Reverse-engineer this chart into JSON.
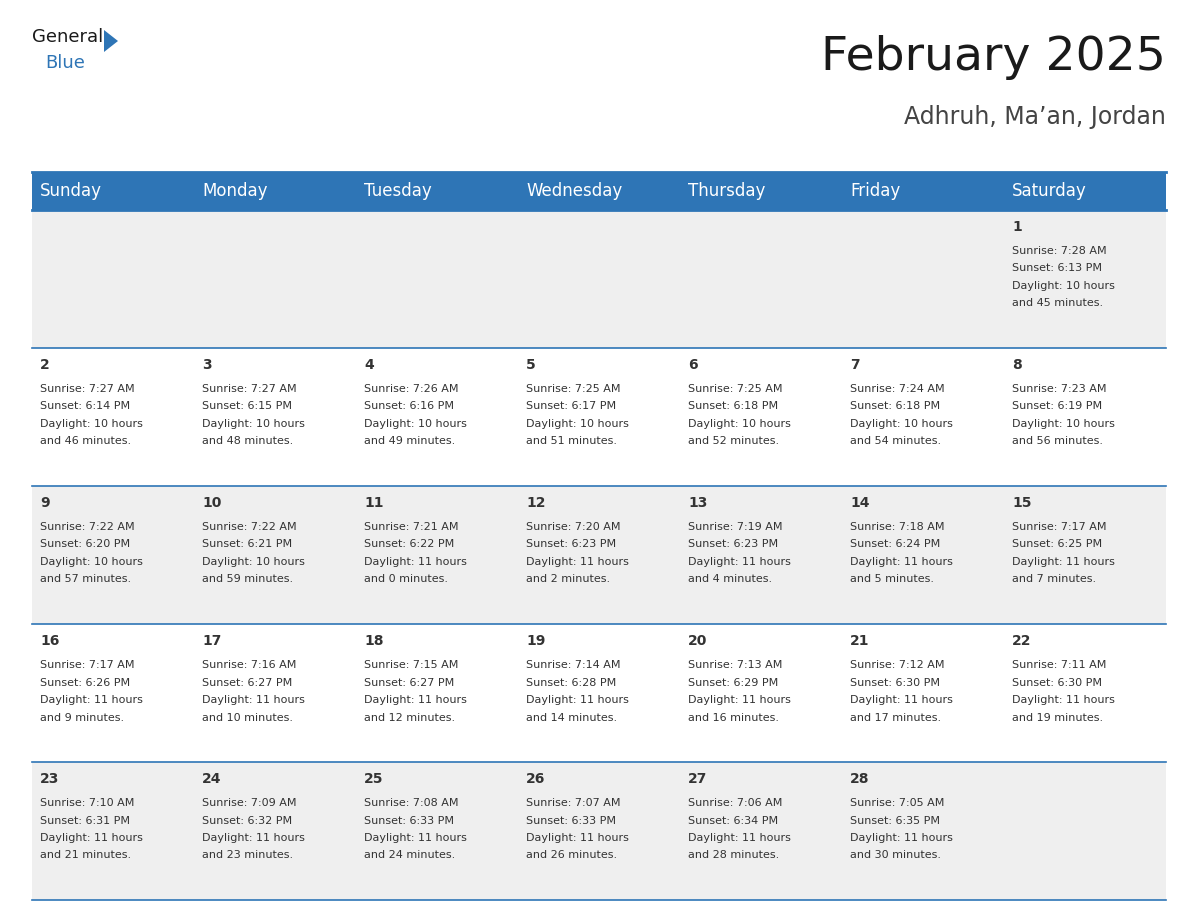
{
  "title": "February 2025",
  "subtitle": "Adhruh, Ma’an, Jordan",
  "header_bg": "#2E75B6",
  "header_text_color": "#FFFFFF",
  "cell_bg_odd": "#EFEFEF",
  "cell_bg_even": "#FFFFFF",
  "border_color": "#2E75B6",
  "text_color": "#333333",
  "day_headers": [
    "Sunday",
    "Monday",
    "Tuesday",
    "Wednesday",
    "Thursday",
    "Friday",
    "Saturday"
  ],
  "days": [
    {
      "day": 1,
      "col": 6,
      "row": 0,
      "sunrise": "7:28 AM",
      "sunset": "6:13 PM",
      "daylight": "10 hours and 45 minutes."
    },
    {
      "day": 2,
      "col": 0,
      "row": 1,
      "sunrise": "7:27 AM",
      "sunset": "6:14 PM",
      "daylight": "10 hours and 46 minutes."
    },
    {
      "day": 3,
      "col": 1,
      "row": 1,
      "sunrise": "7:27 AM",
      "sunset": "6:15 PM",
      "daylight": "10 hours and 48 minutes."
    },
    {
      "day": 4,
      "col": 2,
      "row": 1,
      "sunrise": "7:26 AM",
      "sunset": "6:16 PM",
      "daylight": "10 hours and 49 minutes."
    },
    {
      "day": 5,
      "col": 3,
      "row": 1,
      "sunrise": "7:25 AM",
      "sunset": "6:17 PM",
      "daylight": "10 hours and 51 minutes."
    },
    {
      "day": 6,
      "col": 4,
      "row": 1,
      "sunrise": "7:25 AM",
      "sunset": "6:18 PM",
      "daylight": "10 hours and 52 minutes."
    },
    {
      "day": 7,
      "col": 5,
      "row": 1,
      "sunrise": "7:24 AM",
      "sunset": "6:18 PM",
      "daylight": "10 hours and 54 minutes."
    },
    {
      "day": 8,
      "col": 6,
      "row": 1,
      "sunrise": "7:23 AM",
      "sunset": "6:19 PM",
      "daylight": "10 hours and 56 minutes."
    },
    {
      "day": 9,
      "col": 0,
      "row": 2,
      "sunrise": "7:22 AM",
      "sunset": "6:20 PM",
      "daylight": "10 hours and 57 minutes."
    },
    {
      "day": 10,
      "col": 1,
      "row": 2,
      "sunrise": "7:22 AM",
      "sunset": "6:21 PM",
      "daylight": "10 hours and 59 minutes."
    },
    {
      "day": 11,
      "col": 2,
      "row": 2,
      "sunrise": "7:21 AM",
      "sunset": "6:22 PM",
      "daylight": "11 hours and 0 minutes."
    },
    {
      "day": 12,
      "col": 3,
      "row": 2,
      "sunrise": "7:20 AM",
      "sunset": "6:23 PM",
      "daylight": "11 hours and 2 minutes."
    },
    {
      "day": 13,
      "col": 4,
      "row": 2,
      "sunrise": "7:19 AM",
      "sunset": "6:23 PM",
      "daylight": "11 hours and 4 minutes."
    },
    {
      "day": 14,
      "col": 5,
      "row": 2,
      "sunrise": "7:18 AM",
      "sunset": "6:24 PM",
      "daylight": "11 hours and 5 minutes."
    },
    {
      "day": 15,
      "col": 6,
      "row": 2,
      "sunrise": "7:17 AM",
      "sunset": "6:25 PM",
      "daylight": "11 hours and 7 minutes."
    },
    {
      "day": 16,
      "col": 0,
      "row": 3,
      "sunrise": "7:17 AM",
      "sunset": "6:26 PM",
      "daylight": "11 hours and 9 minutes."
    },
    {
      "day": 17,
      "col": 1,
      "row": 3,
      "sunrise": "7:16 AM",
      "sunset": "6:27 PM",
      "daylight": "11 hours and 10 minutes."
    },
    {
      "day": 18,
      "col": 2,
      "row": 3,
      "sunrise": "7:15 AM",
      "sunset": "6:27 PM",
      "daylight": "11 hours and 12 minutes."
    },
    {
      "day": 19,
      "col": 3,
      "row": 3,
      "sunrise": "7:14 AM",
      "sunset": "6:28 PM",
      "daylight": "11 hours and 14 minutes."
    },
    {
      "day": 20,
      "col": 4,
      "row": 3,
      "sunrise": "7:13 AM",
      "sunset": "6:29 PM",
      "daylight": "11 hours and 16 minutes."
    },
    {
      "day": 21,
      "col": 5,
      "row": 3,
      "sunrise": "7:12 AM",
      "sunset": "6:30 PM",
      "daylight": "11 hours and 17 minutes."
    },
    {
      "day": 22,
      "col": 6,
      "row": 3,
      "sunrise": "7:11 AM",
      "sunset": "6:30 PM",
      "daylight": "11 hours and 19 minutes."
    },
    {
      "day": 23,
      "col": 0,
      "row": 4,
      "sunrise": "7:10 AM",
      "sunset": "6:31 PM",
      "daylight": "11 hours and 21 minutes."
    },
    {
      "day": 24,
      "col": 1,
      "row": 4,
      "sunrise": "7:09 AM",
      "sunset": "6:32 PM",
      "daylight": "11 hours and 23 minutes."
    },
    {
      "day": 25,
      "col": 2,
      "row": 4,
      "sunrise": "7:08 AM",
      "sunset": "6:33 PM",
      "daylight": "11 hours and 24 minutes."
    },
    {
      "day": 26,
      "col": 3,
      "row": 4,
      "sunrise": "7:07 AM",
      "sunset": "6:33 PM",
      "daylight": "11 hours and 26 minutes."
    },
    {
      "day": 27,
      "col": 4,
      "row": 4,
      "sunrise": "7:06 AM",
      "sunset": "6:34 PM",
      "daylight": "11 hours and 28 minutes."
    },
    {
      "day": 28,
      "col": 5,
      "row": 4,
      "sunrise": "7:05 AM",
      "sunset": "6:35 PM",
      "daylight": "11 hours and 30 minutes."
    }
  ],
  "num_rows": 5,
  "num_cols": 7,
  "logo_triangle_color": "#2E75B6",
  "title_fontsize": 34,
  "subtitle_fontsize": 17,
  "header_fontsize": 12,
  "day_number_fontsize": 10,
  "cell_text_fontsize": 8
}
